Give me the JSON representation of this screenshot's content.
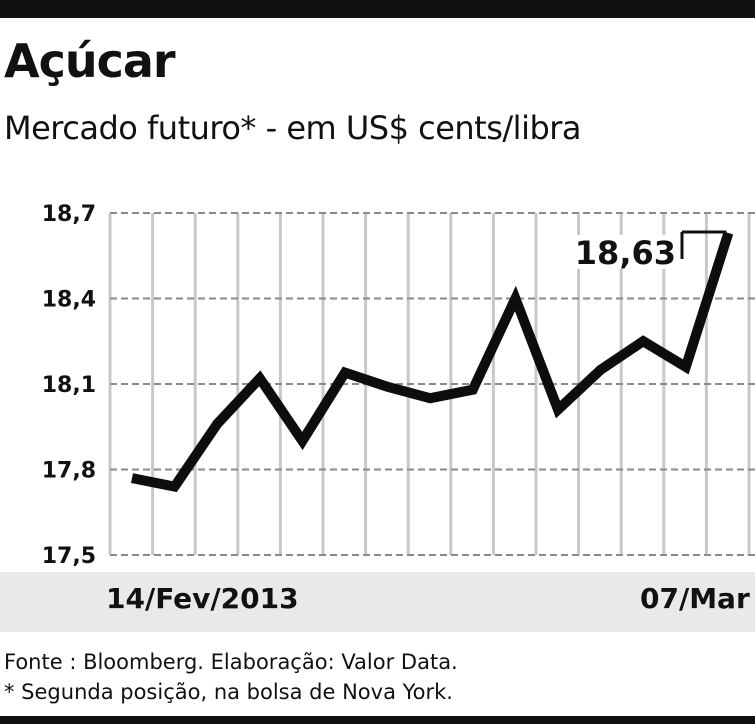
{
  "title": "Açúcar",
  "subtitle": "Mercado futuro* - em US$ cents/libra",
  "source": "Fonte : Bloomberg. Elaboração: Valor Data.",
  "note": "* Segunda posição, na bolsa de Nova York.",
  "chart_data": {
    "type": "line",
    "title": "Açúcar",
    "subtitle": "Mercado futuro* - em US$ cents/libra",
    "x_start_label": "14/Fev/2013",
    "x_end_label": "07/Mar",
    "yticks": [
      "18,7",
      "18,4",
      "18,1",
      "17,8",
      "17,5"
    ],
    "ylim": [
      17.5,
      18.7
    ],
    "grid": true,
    "series": [
      {
        "values": [
          17.77,
          17.74,
          17.96,
          18.12,
          17.9,
          18.14,
          18.09,
          18.05,
          18.08,
          18.4,
          18.01,
          18.15,
          18.25,
          18.16,
          18.63
        ]
      }
    ],
    "last_value_label": "18,63"
  }
}
